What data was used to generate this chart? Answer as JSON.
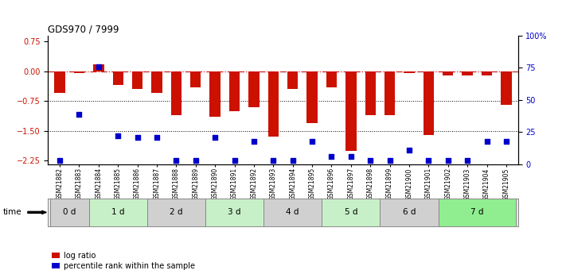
{
  "title": "GDS970 / 7999",
  "samples": [
    "GSM21882",
    "GSM21883",
    "GSM21884",
    "GSM21885",
    "GSM21886",
    "GSM21887",
    "GSM21888",
    "GSM21889",
    "GSM21890",
    "GSM21891",
    "GSM21892",
    "GSM21893",
    "GSM21894",
    "GSM21895",
    "GSM21896",
    "GSM21897",
    "GSM21898",
    "GSM21899",
    "GSM21900",
    "GSM21901",
    "GSM21902",
    "GSM21903",
    "GSM21904",
    "GSM21905"
  ],
  "log_ratio": [
    -0.55,
    -0.05,
    0.18,
    -0.35,
    -0.45,
    -0.55,
    -1.1,
    -0.4,
    -1.15,
    -1.0,
    -0.9,
    -1.65,
    -0.45,
    -1.3,
    -0.4,
    -2.0,
    -1.1,
    -1.1,
    -0.05,
    -1.6,
    -0.1,
    -0.1,
    -0.1,
    -0.85
  ],
  "percentile": [
    3,
    39,
    76,
    22,
    21,
    21,
    3,
    3,
    21,
    3,
    18,
    3,
    3,
    18,
    6,
    6,
    3,
    3,
    11,
    3,
    3,
    3,
    18,
    18
  ],
  "time_groups": [
    {
      "label": "0 d",
      "start": 0,
      "end": 2,
      "color": "#d0d0d0"
    },
    {
      "label": "1 d",
      "start": 2,
      "end": 5,
      "color": "#c8f0c8"
    },
    {
      "label": "2 d",
      "start": 5,
      "end": 8,
      "color": "#d0d0d0"
    },
    {
      "label": "3 d",
      "start": 8,
      "end": 11,
      "color": "#c8f0c8"
    },
    {
      "label": "4 d",
      "start": 11,
      "end": 14,
      "color": "#d0d0d0"
    },
    {
      "label": "5 d",
      "start": 14,
      "end": 17,
      "color": "#c8f0c8"
    },
    {
      "label": "6 d",
      "start": 17,
      "end": 20,
      "color": "#d0d0d0"
    },
    {
      "label": "7 d",
      "start": 20,
      "end": 24,
      "color": "#90ee90"
    }
  ],
  "ylim_left": [
    -2.35,
    0.9
  ],
  "yticks_left": [
    0.75,
    0,
    -0.75,
    -1.5,
    -2.25
  ],
  "ylim_right": [
    0,
    100
  ],
  "yticks_right": [
    0,
    25,
    50,
    75,
    100
  ],
  "bar_color": "#cc1100",
  "dot_color": "#0000cc",
  "zero_line_color": "#cc2222",
  "bg_color": "#ffffff"
}
